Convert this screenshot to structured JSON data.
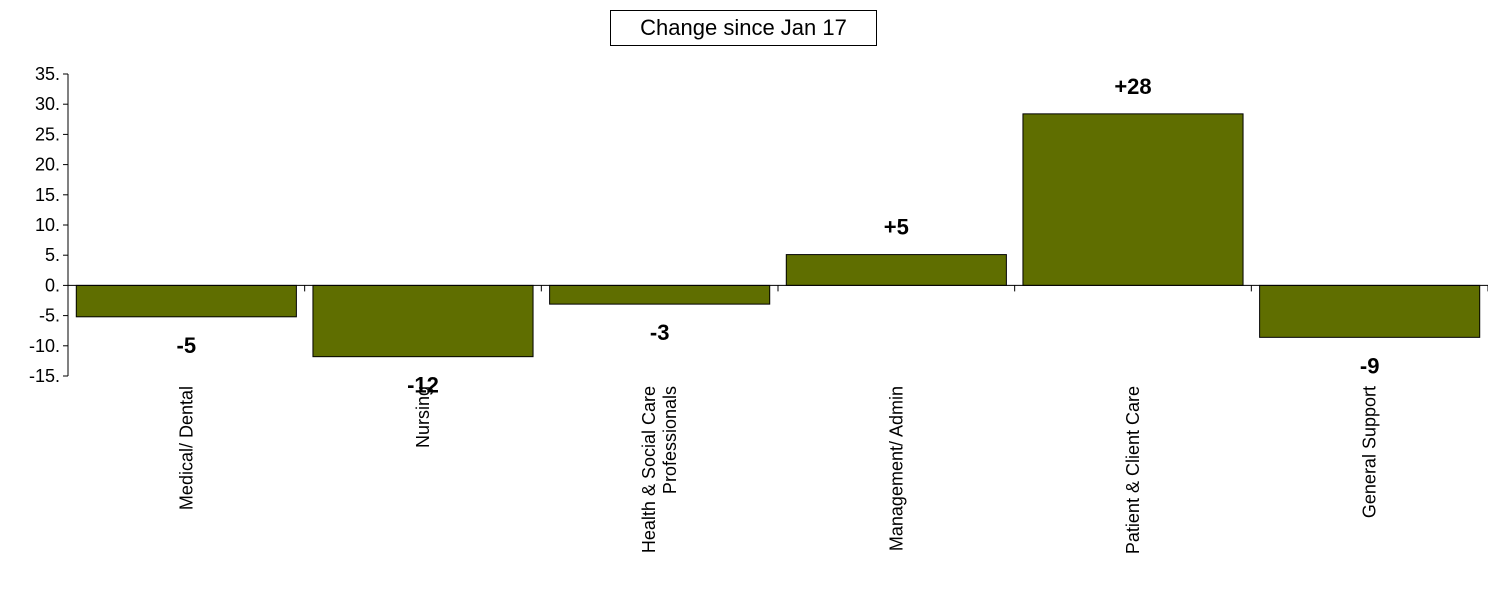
{
  "chart_data": {
    "type": "bar",
    "title": "Change since Jan 17",
    "categories": [
      "Medical/ Dental",
      "Nursing",
      "Health & Social Care Professionals",
      "Management/ Admin",
      "Patient & Client Care",
      "General Support"
    ],
    "category_lines": [
      [
        "Medical/ Dental"
      ],
      [
        "Nursing"
      ],
      [
        "Health & Social Care",
        "Professionals"
      ],
      [
        "Management/ Admin"
      ],
      [
        "Patient & Client Care"
      ],
      [
        "General Support"
      ]
    ],
    "values": [
      -5.2,
      -11.8,
      -3.1,
      5.1,
      28.4,
      -8.6
    ],
    "data_labels": [
      "-5",
      "-12",
      "-3",
      "+5",
      "+28",
      "-9"
    ],
    "yticks": [
      "35.",
      "30.",
      "25.",
      "20.",
      "15.",
      "10.",
      "5.",
      "0.",
      "-5.",
      "-10.",
      "-15."
    ],
    "ytick_values": [
      35,
      30,
      25,
      20,
      15,
      10,
      5,
      0,
      -5,
      -10,
      -15
    ],
    "ylim": [
      -15,
      35
    ],
    "grid": false,
    "legend": "none",
    "bar_color": "#5f6e00"
  }
}
